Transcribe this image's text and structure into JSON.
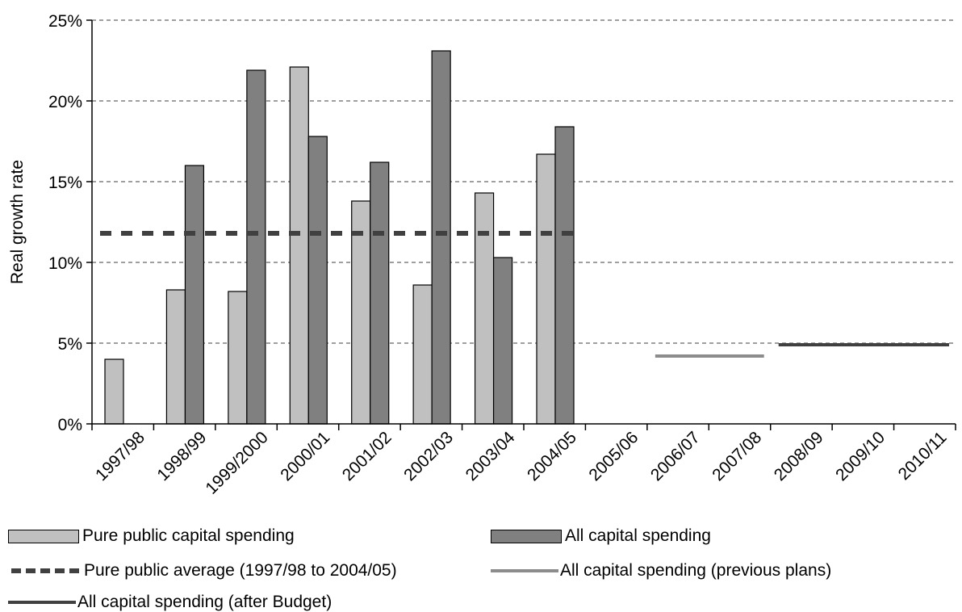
{
  "chart_data": {
    "type": "bar",
    "title": "",
    "xlabel": "",
    "ylabel": "Real growth rate",
    "ylim": [
      0,
      25
    ],
    "yticks": [
      "0%",
      "5%",
      "10%",
      "15%",
      "20%",
      "25%"
    ],
    "grid": "horizontal dashed",
    "categories": [
      "1997/98",
      "1998/99",
      "1999/2000",
      "2000/01",
      "2001/02",
      "2002/03",
      "2003/04",
      "2004/05",
      "2005/06",
      "2006/07",
      "2007/08",
      "2008/09",
      "2009/10",
      "2010/11"
    ],
    "series": [
      {
        "name": "Pure public capital spending",
        "kind": "bar",
        "color": "#c0c0c0",
        "values": [
          4.0,
          8.3,
          8.2,
          22.1,
          13.8,
          8.6,
          14.3,
          16.7,
          null,
          null,
          null,
          null,
          null,
          null
        ]
      },
      {
        "name": "All capital spending",
        "kind": "bar",
        "color": "#808080",
        "values": [
          null,
          16.0,
          21.9,
          17.8,
          16.2,
          23.1,
          10.3,
          18.4,
          null,
          null,
          null,
          null,
          null,
          null
        ]
      },
      {
        "name": "Pure public average (1997/98 to 2004/05)",
        "kind": "dashed-line",
        "color": "#404040",
        "value": 11.8,
        "from": "1997/98",
        "to": "2004/05"
      },
      {
        "name": "All capital spending (previous plans)",
        "kind": "line",
        "color": "#8c8c8c",
        "value": 4.2,
        "from": "2006/07",
        "to": "2007/08"
      },
      {
        "name": "All capital spending (after Budget)",
        "kind": "line",
        "color": "#404040",
        "value": 4.9,
        "from": "2008/09",
        "to": "2010/11"
      }
    ],
    "legend_position": "bottom"
  }
}
